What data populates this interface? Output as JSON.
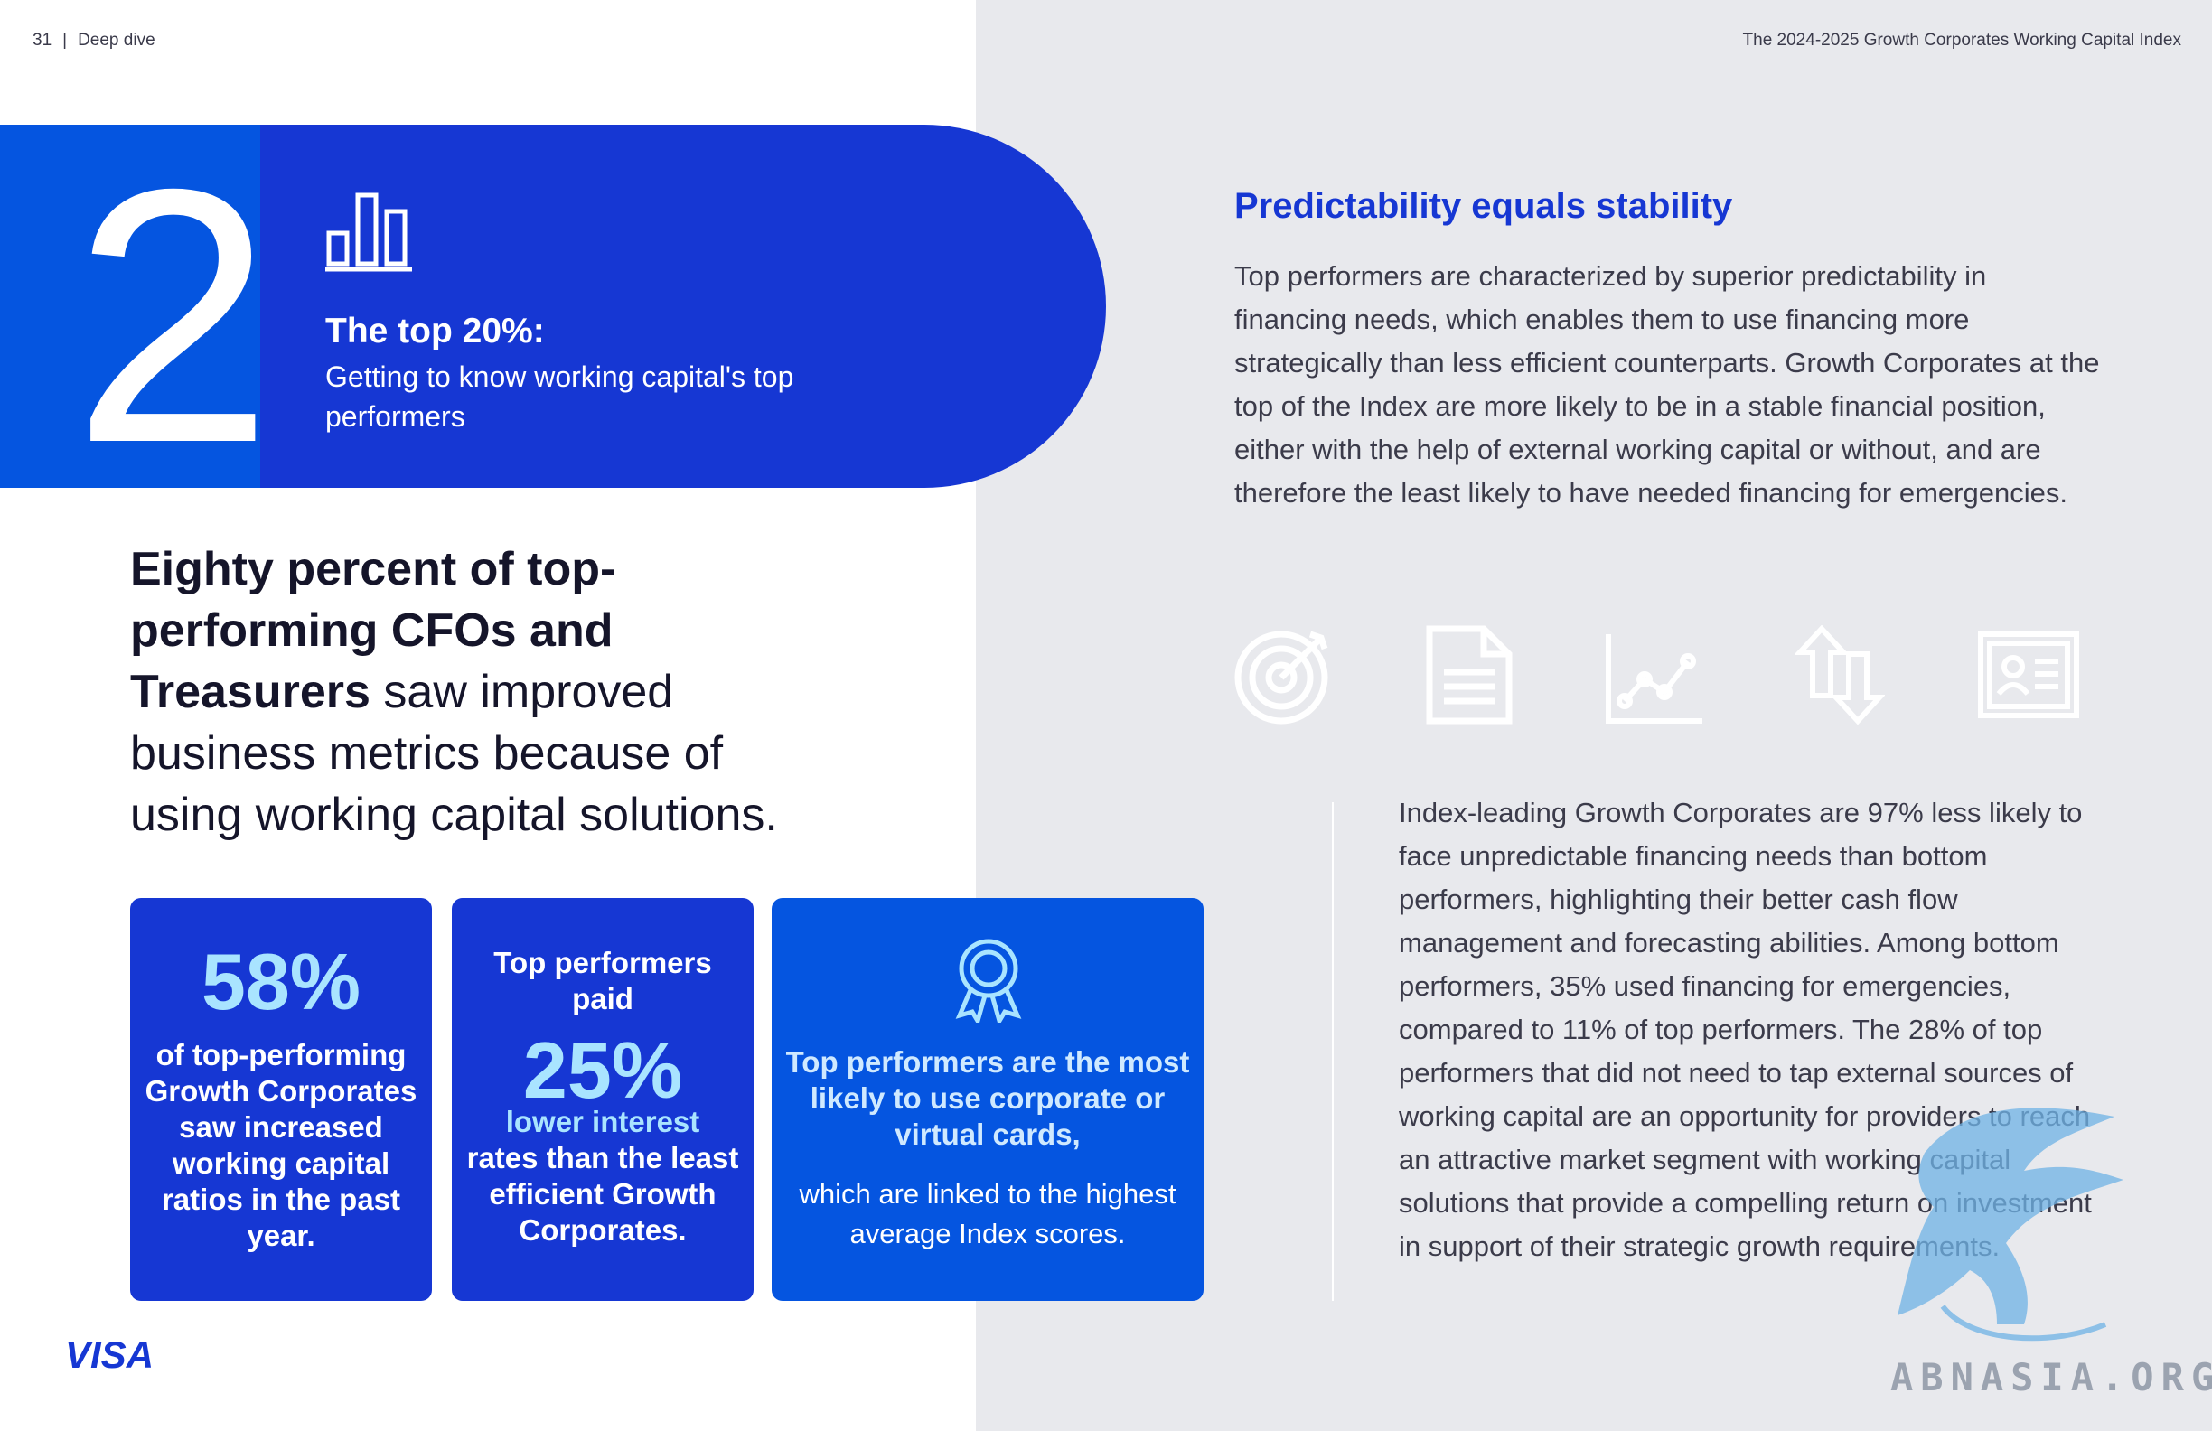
{
  "header": {
    "page_number": "31",
    "separator": "|",
    "section": "Deep dive",
    "report_title": "The 2024-2025 Growth Corporates Working Capital Index"
  },
  "hero": {
    "number": "2",
    "title": "The top 20%:",
    "subtitle": "Getting to know working capital's top performers",
    "icon": "bar-chart-icon"
  },
  "statement": {
    "bold": "Eighty percent of top-performing CFOs and Treasurers",
    "regular": " saw improved business metrics because of using working capital solutions."
  },
  "cards": [
    {
      "big": "58%",
      "text": "of top-performing Growth Corporates saw increased working capital ratios in the past year."
    },
    {
      "top": "Top performers paid",
      "big": "25%",
      "text_highlight": "lower interest",
      "text": "rates than the least efficient Growth Corporates."
    },
    {
      "icon": "award-ribbon-icon",
      "bold": "Top performers are the most likely to use corporate or virtual cards,",
      "text": "which are linked to the highest average Index scores."
    }
  ],
  "right": {
    "heading": "Predictability equals stability",
    "paragraph": "Top performers are characterized by superior predictability in financing needs, which enables them to use financing more strategically than less efficient counterparts. Growth Corporates at the top of the Index are more likely to be in a stable financial position, either with the help of external working capital or without, and are therefore the least likely to have needed financing for emergencies.",
    "icons": [
      "target-icon",
      "document-icon",
      "line-chart-icon",
      "exchange-arrows-icon",
      "certificate-icon"
    ],
    "paragraph2": "Index-leading Growth Corporates are 97% less likely to face unpredictable financing needs than bottom performers, highlighting their better cash flow management and forecasting abilities. Among bottom performers, 35% used financing for emergencies, compared to 11% of top performers. The 28% of top performers that did not need to tap external sources of working capital are an opportunity for providers to reach an attractive market segment with working capital solutions that provide a compelling return on investment in support of their strategic growth requirements."
  },
  "footer": {
    "logo": "VISA",
    "watermark": "ABNASIA.ORG"
  },
  "colors": {
    "brand_blue": "#1637d3",
    "bright_blue": "#0555e0",
    "light_cyan": "#a9e4ff",
    "panel_grey": "#e8e9ed"
  }
}
